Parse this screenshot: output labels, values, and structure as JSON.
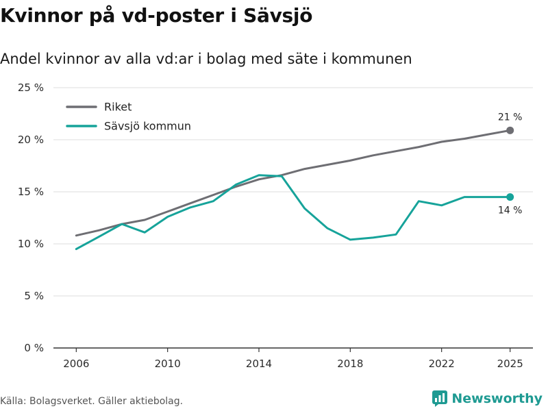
{
  "title": "Kvinnor på vd-poster i Sävsjö",
  "subtitle": "Andel kvinnor av alla vd:ar i bolag med säte i kommunen",
  "source": "Källa: Bolagsverket. Gäller aktiebolag.",
  "brand": "Newsworthy",
  "colors": {
    "riket": "#6e6e73",
    "savsjo": "#16a39a",
    "grid": "#dcdcdc",
    "axis": "#333333"
  },
  "chart_data": {
    "type": "line",
    "x": [
      2006,
      2007,
      2008,
      2009,
      2010,
      2011,
      2012,
      2013,
      2014,
      2015,
      2016,
      2017,
      2018,
      2019,
      2020,
      2021,
      2022,
      2023,
      2024,
      2025
    ],
    "series": [
      {
        "name": "Riket",
        "values": [
          10.8,
          11.3,
          11.9,
          12.3,
          13.1,
          13.9,
          14.7,
          15.5,
          16.2,
          16.6,
          17.2,
          17.6,
          18.0,
          18.5,
          18.9,
          19.3,
          19.8,
          20.1,
          20.5,
          20.9
        ],
        "end_label": "21 %"
      },
      {
        "name": "Sävsjö kommun",
        "values": [
          9.5,
          10.7,
          11.9,
          11.1,
          12.6,
          13.5,
          14.1,
          15.7,
          16.6,
          16.5,
          13.4,
          11.5,
          10.4,
          10.6,
          10.9,
          14.1,
          13.7,
          14.5,
          14.5,
          14.5
        ],
        "end_label": "14 %"
      }
    ],
    "title": "Kvinnor på vd-poster i Sävsjö",
    "xlabel": "",
    "ylabel": "",
    "ylim": [
      0,
      25
    ],
    "yticks": [
      0,
      5,
      10,
      15,
      20,
      25
    ],
    "ytick_labels": [
      "0 %",
      "5 %",
      "10 %",
      "15 %",
      "20 %",
      "25 %"
    ],
    "xticks": [
      2006,
      2010,
      2014,
      2018,
      2022,
      2025
    ],
    "xtick_labels": [
      "2006",
      "2010",
      "2014",
      "2018",
      "2022",
      "2025"
    ],
    "legend": "top-left",
    "grid": true
  }
}
